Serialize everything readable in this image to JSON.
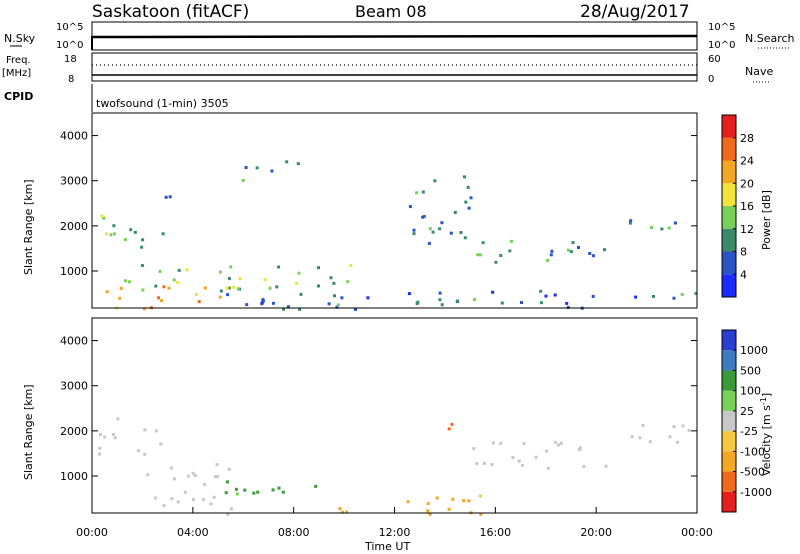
{
  "header": {
    "title": "Saskatoon (fitACF)",
    "beam": "Beam 08",
    "date": "28/Aug/2017"
  },
  "status_panels": {
    "noise": {
      "left_label": "N.Sky",
      "right_label": "N.Search",
      "left_ticks": [
        "10^5",
        "10^0"
      ],
      "right_ticks": [
        "10^5",
        "10^0"
      ]
    },
    "freq": {
      "left_label_1": "Freq.",
      "left_label_2": "[MHz]",
      "right_label": "Nave",
      "left_ticks": [
        "18",
        "8"
      ],
      "right_ticks": [
        "60",
        "0"
      ]
    },
    "cpid": {
      "label": "CPID",
      "text": "twofsound (1-min) 3505"
    }
  },
  "chart_data": [
    {
      "type": "heatmap",
      "name": "power",
      "ylabel": "Slant Range [km]",
      "ylim": [
        180,
        4500
      ],
      "xlim": [
        0,
        24
      ],
      "yticks": [
        "1000",
        "2000",
        "3000",
        "4000"
      ],
      "colorbar": {
        "label": "Power [dB]",
        "ticks": [
          "4",
          "8",
          "12",
          "16",
          "20",
          "24",
          "28"
        ],
        "colors": [
          "#1c2bff",
          "#2a54c8",
          "#3a8a6a",
          "#7ad15a",
          "#f2e23a",
          "#f5a623",
          "#f06a1c",
          "#e51f1f"
        ]
      },
      "echo_regions": [
        {
          "t0": 0.2,
          "t1": 2.8,
          "r0": 1500,
          "r1": 2300,
          "level": 12
        },
        {
          "t0": 2.5,
          "t1": 3.2,
          "r0": 2500,
          "r1": 3000,
          "level": 8
        },
        {
          "t0": 1.2,
          "t1": 10.5,
          "r0": 600,
          "r1": 1200,
          "level": 14
        },
        {
          "t0": 0.5,
          "t1": 5.5,
          "r0": 180,
          "r1": 700,
          "level": 22
        },
        {
          "t0": 5.5,
          "t1": 6.5,
          "r0": 3000,
          "r1": 3500,
          "level": 8
        },
        {
          "t0": 7.0,
          "t1": 8.5,
          "r0": 3100,
          "r1": 3500,
          "level": 8
        },
        {
          "t0": 12.5,
          "t1": 15.0,
          "r0": 1600,
          "r1": 3200,
          "level": 10
        },
        {
          "t0": 14.5,
          "t1": 20.5,
          "r0": 1200,
          "r1": 1700,
          "level": 10
        },
        {
          "t0": 21.3,
          "t1": 24.0,
          "r0": 1900,
          "r1": 2300,
          "level": 12
        },
        {
          "t0": 5.0,
          "t1": 24.0,
          "r0": 180,
          "r1": 600,
          "level": 8
        }
      ]
    },
    {
      "type": "heatmap",
      "name": "velocity",
      "ylabel": "Slant Range [km]",
      "xlabel": "Time UT",
      "ylim": [
        180,
        4500
      ],
      "xlim": [
        0,
        24
      ],
      "yticks": [
        "1000",
        "2000",
        "3000",
        "4000"
      ],
      "xticks": [
        "00:00",
        "04:00",
        "08:00",
        "12:00",
        "16:00",
        "20:00",
        "00:00"
      ],
      "colorbar": {
        "label": "Velocity [m s",
        "label_sup": "-1",
        "label_end": "]",
        "ticks": [
          "1000",
          "500",
          "100",
          "25",
          "-25",
          "-100",
          "-500",
          "-1000"
        ],
        "colors": [
          "#2a3fd1",
          "#3d7ac0",
          "#3a9a3a",
          "#7ad15a",
          "#c8c8c8",
          "#f5c842",
          "#f5a623",
          "#f06a1c",
          "#e51f1f"
        ]
      },
      "echo_regions": [
        {
          "t0": 0.2,
          "t1": 2.8,
          "r0": 1500,
          "r1": 2300,
          "level": "ground"
        },
        {
          "t0": 2.0,
          "t1": 5.5,
          "r0": 180,
          "r1": 1300,
          "level": "ground"
        },
        {
          "t0": 5.0,
          "t1": 9.0,
          "r0": 600,
          "r1": 1100,
          "level": 100
        },
        {
          "t0": 9.0,
          "t1": 15.5,
          "r0": 180,
          "r1": 600,
          "level": -100
        },
        {
          "t0": 13.5,
          "t1": 14.3,
          "r0": 1900,
          "r1": 2400,
          "level": -500
        },
        {
          "t0": 14.5,
          "t1": 20.5,
          "r0": 1200,
          "r1": 1800,
          "level": "ground"
        },
        {
          "t0": 21.3,
          "t1": 24.0,
          "r0": 1700,
          "r1": 2300,
          "level": "ground"
        }
      ]
    }
  ]
}
